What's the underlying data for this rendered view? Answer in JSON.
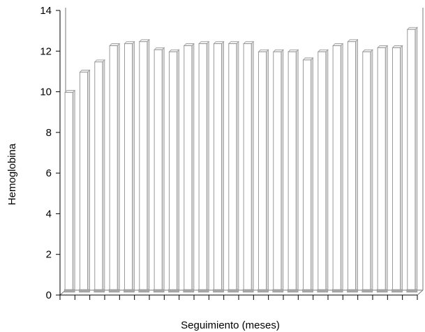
{
  "chart_data": {
    "type": "bar",
    "xlabel": "Seguimiento (meses)",
    "ylabel": "Hemoglobina",
    "ylim": [
      0,
      14
    ],
    "yticks": [
      0,
      2,
      4,
      6,
      8,
      10,
      12,
      14
    ],
    "grid": false,
    "values": [
      10.0,
      11.0,
      11.5,
      12.3,
      12.4,
      12.5,
      12.1,
      12.0,
      12.3,
      12.4,
      12.4,
      12.4,
      12.4,
      12.0,
      12.0,
      12.0,
      11.6,
      12.0,
      12.3,
      12.5,
      12.0,
      12.2,
      12.2,
      13.1
    ],
    "bar_color": "#ffffff",
    "bar_edge_color": "#9a9a9a",
    "base_color": "#a8a8a8"
  }
}
